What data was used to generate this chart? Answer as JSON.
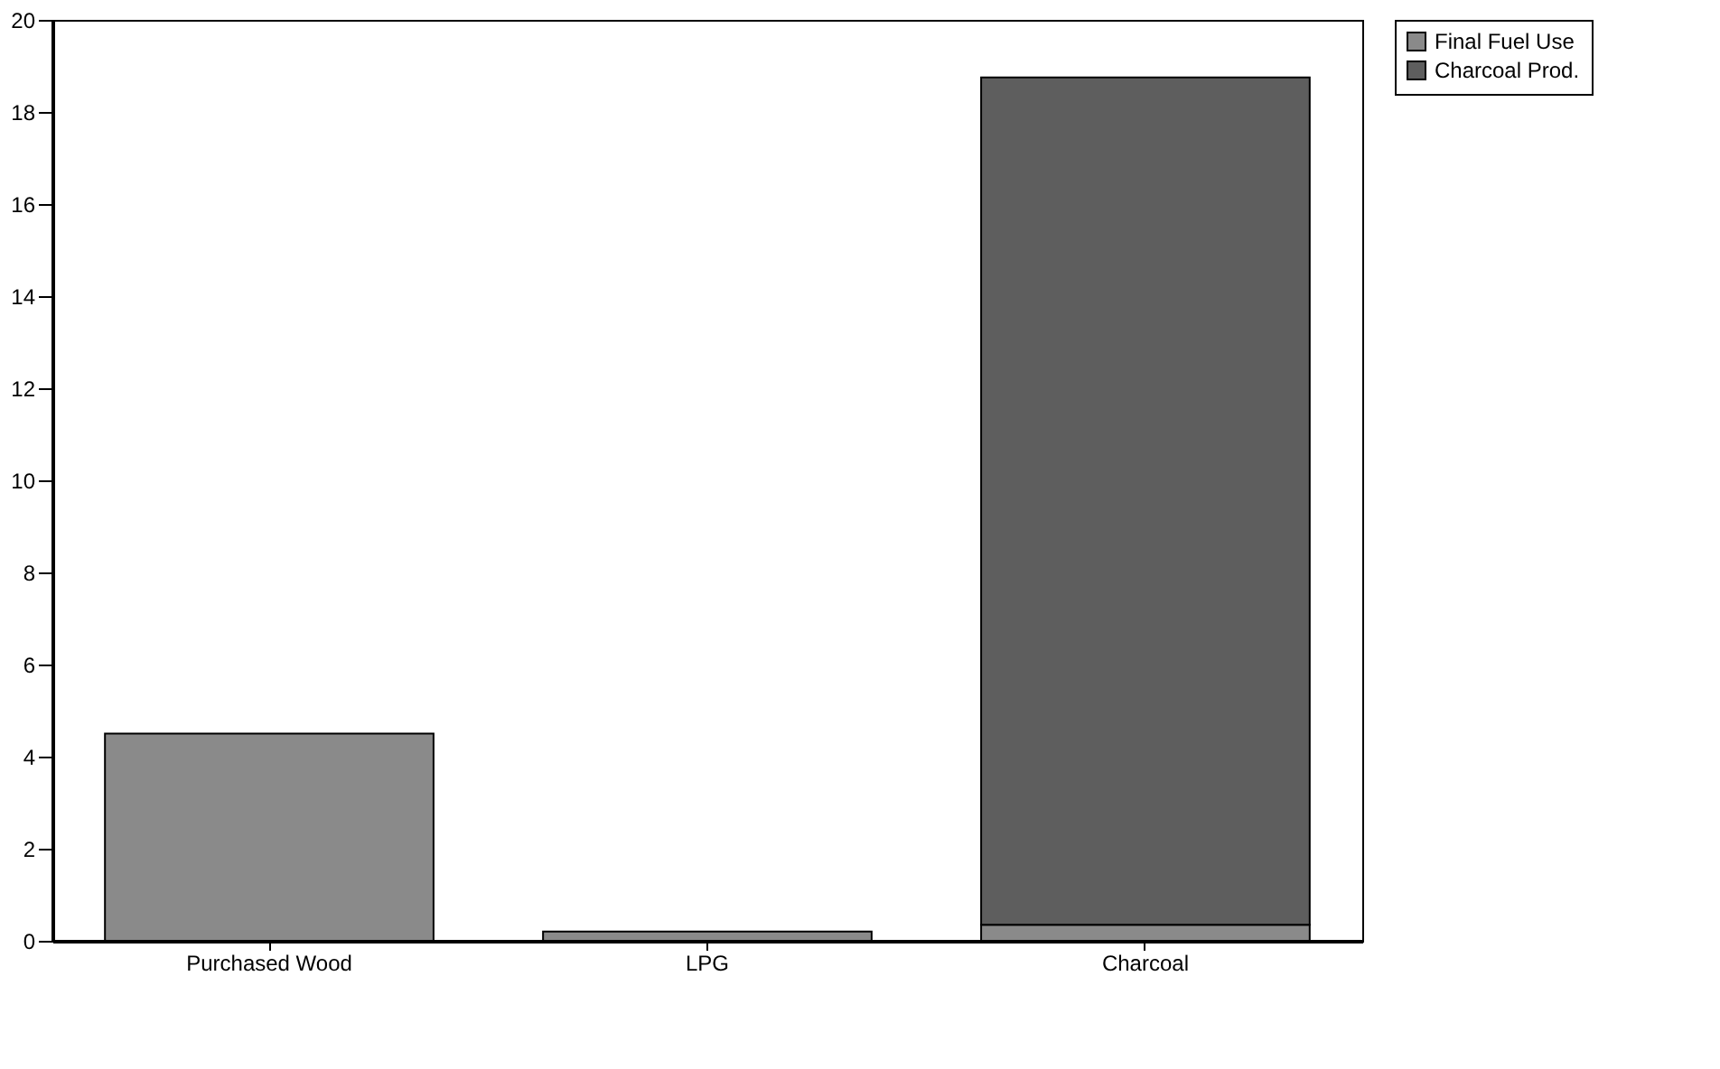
{
  "chart_data": {
    "type": "bar",
    "stacked": true,
    "categories": [
      "Purchased Wood",
      "LPG",
      "Charcoal"
    ],
    "series": [
      {
        "name": "Final Fuel Use",
        "color": "#8a8a8a",
        "values": [
          4.5,
          0.2,
          0.35
        ]
      },
      {
        "name": "Charcoal Prod.",
        "color": "#5e5e5e",
        "values": [
          0,
          0,
          18.4
        ]
      }
    ],
    "ylim": [
      0,
      20
    ],
    "yticks": [
      0,
      2,
      4,
      6,
      8,
      10,
      12,
      14,
      16,
      18,
      20
    ],
    "grid": false,
    "legend": "top right"
  }
}
